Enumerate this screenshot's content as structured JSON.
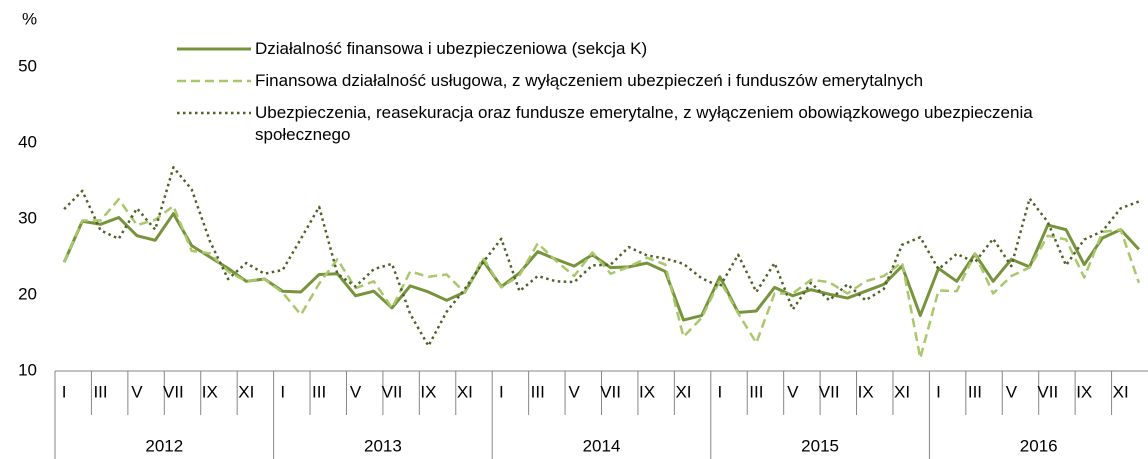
{
  "chart_data": {
    "type": "line",
    "y_label": "%",
    "categories": [
      "I",
      null,
      "III",
      null,
      "V",
      null,
      "VII",
      null,
      "IX",
      null,
      "XI",
      null,
      "I",
      null,
      "III",
      null,
      "V",
      null,
      "VII",
      null,
      "IX",
      null,
      "XI",
      null,
      "I",
      null,
      "III",
      null,
      "V",
      null,
      "VII",
      null,
      "IX",
      null,
      "XI",
      null,
      "I",
      null,
      "III",
      null,
      "V",
      null,
      "VII",
      null,
      "IX",
      null,
      "XI",
      null,
      "I",
      null,
      "III",
      null,
      "V",
      null,
      "VII",
      null,
      "IX",
      null,
      "XI",
      null
    ],
    "years": [
      "2012",
      "2013",
      "2014",
      "2015",
      "2016"
    ],
    "ylim": [
      10,
      50
    ],
    "yticks": [
      10,
      20,
      30,
      40,
      50
    ],
    "grid": false,
    "series": [
      {
        "name": "Działalność finansowa i ubezpieczeniowa (sekcja K)",
        "color": "#77933c",
        "style": "solid",
        "values": [
          24.3,
          29.7,
          29.3,
          30.2,
          27.8,
          27.2,
          30.7,
          26.5,
          25,
          23.5,
          21.8,
          22.1,
          20.5,
          20.4,
          22.7,
          22.8,
          19.9,
          20.5,
          18.3,
          21.2,
          20.4,
          19.3,
          20.4,
          24.5,
          21.1,
          22.9,
          25.7,
          24.7,
          23.8,
          25.3,
          23.6,
          23.7,
          24.2,
          23.1,
          16.7,
          17.3,
          22.4,
          17.7,
          17.9,
          21,
          19.9,
          20.7,
          20.1,
          19.6,
          20.5,
          21.4,
          23.8,
          17.3,
          23.5,
          21.8,
          25.4,
          21.8,
          24.7,
          23.7,
          29.2,
          28.6,
          24,
          27.5,
          28.6,
          26
        ]
      },
      {
        "name": "Finansowa działalność usługowa, z wyłączeniem ubezpieczeń i funduszów emerytalnych",
        "color": "#a9c76b",
        "style": "dashed",
        "values": [
          24.3,
          29.8,
          29.8,
          32.6,
          29.2,
          29.9,
          31.7,
          25.8,
          25.5,
          23.1,
          21.8,
          22.1,
          20.3,
          17.4,
          21.5,
          24.7,
          20.9,
          21.8,
          18.3,
          23.1,
          22.4,
          22.7,
          20.3,
          24.9,
          21,
          22.6,
          26.8,
          24.5,
          22.5,
          25.6,
          22.8,
          23.7,
          24.9,
          24,
          14.5,
          17,
          21.9,
          17.6,
          13.7,
          20.2,
          20.2,
          22,
          21.7,
          20.2,
          21.8,
          22.5,
          24.3,
          11.7,
          20.6,
          20.5,
          25.4,
          20.2,
          22.5,
          23.6,
          27.8,
          27.3,
          22.3,
          28.3,
          28.6,
          21.6
        ]
      },
      {
        "name": "Ubezpieczenia, reasekuracja oraz fundusze emerytalne, z wyłączeniem obowiązkowego ubezpieczenia społecznego",
        "color": "#4f6228",
        "style": "dotted",
        "values": [
          31.3,
          33.7,
          28.5,
          27.4,
          31.4,
          28.6,
          36.8,
          33.9,
          27.1,
          22.1,
          24.2,
          22.8,
          23.3,
          27.4,
          31.6,
          22.8,
          21.1,
          23.4,
          24.1,
          17.5,
          13.3,
          17.8,
          20.8,
          24.3,
          27.4,
          20.5,
          22.5,
          21.8,
          21.7,
          23.9,
          24,
          26.3,
          25.2,
          24.8,
          24.1,
          22.2,
          21.1,
          25.3,
          20.4,
          24.2,
          18.1,
          21.6,
          19.3,
          21.4,
          19.3,
          20.8,
          26.6,
          27.6,
          23.4,
          25.4,
          24.3,
          27.4,
          23.8,
          32.7,
          29.6,
          23.9,
          27.3,
          28.4,
          31.4,
          32.3
        ]
      }
    ]
  }
}
